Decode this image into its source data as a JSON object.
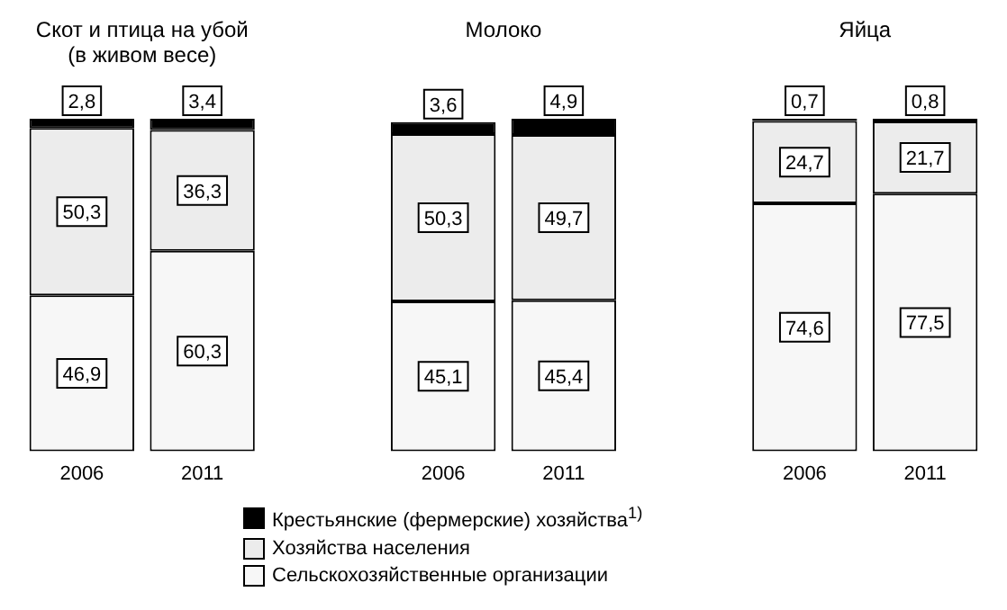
{
  "chart_data": {
    "type": "bar",
    "stacked": true,
    "categories": [
      "2006",
      "2011",
      null,
      "2006",
      "2011",
      null,
      "2006",
      "2011"
    ],
    "annotations": [
      "Скот и птица на убой\n(в живом весе)",
      "Молоко",
      "Яйца"
    ],
    "series": [
      {
        "name": "Сельскохозяйственные организации",
        "color": "#f7f7f7",
        "values": [
          46.9,
          60.3,
          null,
          45.1,
          45.4,
          null,
          74.6,
          77.5
        ],
        "value_labels": [
          "46,9",
          "60,3",
          null,
          "45,1",
          "45,4",
          null,
          "74,6",
          "77,5"
        ]
      },
      {
        "name": "Хозяйства населения",
        "color": "#ececec",
        "values": [
          50.3,
          36.3,
          null,
          50.3,
          49.7,
          null,
          24.7,
          21.7
        ],
        "value_labels": [
          "50,3",
          "36,3",
          null,
          "50,3",
          "49,7",
          null,
          "24,7",
          "21,7"
        ]
      },
      {
        "name": "Крестьянские (фермерские) хозяйства$^{1)}$",
        "color": "#000000",
        "values": [
          2.8,
          3.4,
          null,
          3.6,
          4.9,
          null,
          0.7,
          0.8
        ],
        "value_labels": [
          "2,8",
          "3,4",
          null,
          "3,6",
          "4,9",
          null,
          "0,7",
          "0,8"
        ]
      }
    ],
    "ylim": [
      0,
      100
    ],
    "grid": false,
    "legend": "bottom",
    "tick_labels": "x"
  }
}
